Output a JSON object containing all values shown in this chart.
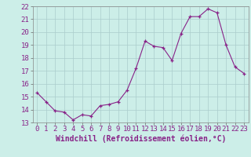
{
  "x": [
    0,
    1,
    2,
    3,
    4,
    5,
    6,
    7,
    8,
    9,
    10,
    11,
    12,
    13,
    14,
    15,
    16,
    17,
    18,
    19,
    20,
    21,
    22,
    23
  ],
  "y": [
    15.3,
    14.6,
    13.9,
    13.8,
    13.2,
    13.6,
    13.5,
    14.3,
    14.4,
    14.6,
    15.5,
    17.2,
    19.3,
    18.9,
    18.8,
    17.8,
    19.9,
    21.2,
    21.2,
    21.8,
    21.5,
    19.0,
    17.3,
    16.8
  ],
  "line_color": "#882288",
  "marker_color": "#882288",
  "bg_color": "#cceee8",
  "grid_color": "#aacccc",
  "xlabel": "Windchill (Refroidissement éolien,°C)",
  "xlim": [
    -0.5,
    23.5
  ],
  "ylim": [
    13,
    22
  ],
  "yticks": [
    13,
    14,
    15,
    16,
    17,
    18,
    19,
    20,
    21,
    22
  ],
  "xticks": [
    0,
    1,
    2,
    3,
    4,
    5,
    6,
    7,
    8,
    9,
    10,
    11,
    12,
    13,
    14,
    15,
    16,
    17,
    18,
    19,
    20,
    21,
    22,
    23
  ],
  "xlabel_fontsize": 7,
  "tick_fontsize": 6.5
}
